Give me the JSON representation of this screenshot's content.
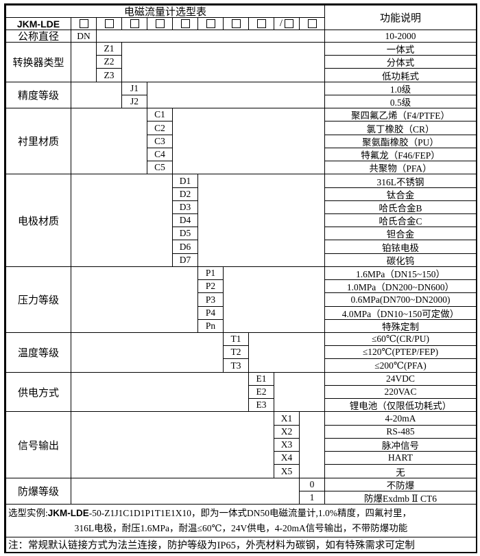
{
  "title": "电磁流量计选型表",
  "right_header": "功能说明",
  "model_row": {
    "prefix": "JKM-LDE",
    "box_count": 10,
    "slash_before_index": 8,
    "checkbox_icon": "empty-square"
  },
  "groups": [
    {
      "label": "公称直径",
      "col": 1,
      "rows": [
        {
          "code": "DN",
          "desc": "10-2000"
        }
      ]
    },
    {
      "label": "转换器类型",
      "col": 2,
      "rows": [
        {
          "code": "Z1",
          "desc": "一体式"
        },
        {
          "code": "Z2",
          "desc": "分体式"
        },
        {
          "code": "Z3",
          "desc": "低功耗式"
        }
      ]
    },
    {
      "label": "精度等级",
      "col": 3,
      "rows": [
        {
          "code": "J1",
          "desc": "1.0级"
        },
        {
          "code": "J2",
          "desc": "0.5级"
        }
      ]
    },
    {
      "label": "衬里材质",
      "col": 4,
      "rows": [
        {
          "code": "C1",
          "desc": "聚四氟乙烯（F4/PTFE）"
        },
        {
          "code": "C2",
          "desc": "氯丁橡胶（CR）"
        },
        {
          "code": "C3",
          "desc": "聚氨酯橡胶（PU）"
        },
        {
          "code": "C4",
          "desc": "特氟龙（F46/FEP）"
        },
        {
          "code": "C5",
          "desc": "共聚物（PFA）"
        }
      ]
    },
    {
      "label": "电极材质",
      "col": 5,
      "rows": [
        {
          "code": "D1",
          "desc": "316L不锈钢"
        },
        {
          "code": "D2",
          "desc": "钛合金"
        },
        {
          "code": "D3",
          "desc": "哈氏合金B"
        },
        {
          "code": "D4",
          "desc": "哈氏合金C"
        },
        {
          "code": "D5",
          "desc": "钽合金"
        },
        {
          "code": "D6",
          "desc": "铂铱电极"
        },
        {
          "code": "D7",
          "desc": "碳化钨"
        }
      ]
    },
    {
      "label": "压力等级",
      "col": 6,
      "rows": [
        {
          "code": "P1",
          "desc": "1.6MPa（DN15~150）"
        },
        {
          "code": "P2",
          "desc": "1.0MPa（DN200~DN600）"
        },
        {
          "code": "P3",
          "desc": "0.6MPa(DN700~DN2000)"
        },
        {
          "code": "P4",
          "desc": "4.0MPa（DN10~150可定做）"
        },
        {
          "code": "Pn",
          "desc": "特殊定制"
        }
      ]
    },
    {
      "label": "温度等级",
      "col": 7,
      "rows": [
        {
          "code": "T1",
          "desc": "≤60℃(CR/PU)"
        },
        {
          "code": "T2",
          "desc": "≤120℃(PTEP/FEP)"
        },
        {
          "code": "T3",
          "desc": "≤200℃(PFA)"
        }
      ]
    },
    {
      "label": "供电方式",
      "col": 8,
      "rows": [
        {
          "code": "E1",
          "desc": "24VDC"
        },
        {
          "code": "E2",
          "desc": "220VAC"
        },
        {
          "code": "E3",
          "desc": "锂电池（仅限低功耗式）"
        }
      ]
    },
    {
      "label": "信号输出",
      "col": 9,
      "rows": [
        {
          "code": "X1",
          "desc": "4-20mA"
        },
        {
          "code": "X2",
          "desc": "RS-485"
        },
        {
          "code": "X3",
          "desc": "脉冲信号"
        },
        {
          "code": "X4",
          "desc": "HART"
        },
        {
          "code": "X5",
          "desc": "无"
        }
      ]
    },
    {
      "label": "防爆等级",
      "col": 10,
      "rows": [
        {
          "code": "0",
          "desc": "不防爆"
        },
        {
          "code": "1",
          "desc": "防爆Exdmb Ⅱ CT6"
        }
      ]
    }
  ],
  "example": {
    "prefix": "选型实例:",
    "model": "JKM-LDE",
    "line1_rest": "-50-Z1J1C1D1P1T1E1X10，即为一体式DN50电磁流量计,1.0%精度，四氟衬里，",
    "line2": "316L电极，耐压1.6MPa，耐温≤60℃，24V供电，4-20mA信号输出，不带防爆功能"
  },
  "note": "注：常规默认链接方式为法兰连接，防护等级为IP65，外壳材料为碳钢，如有特殊需求可定制",
  "colors": {
    "border": "#000000",
    "background": "#ffffff",
    "text": "#000000"
  }
}
